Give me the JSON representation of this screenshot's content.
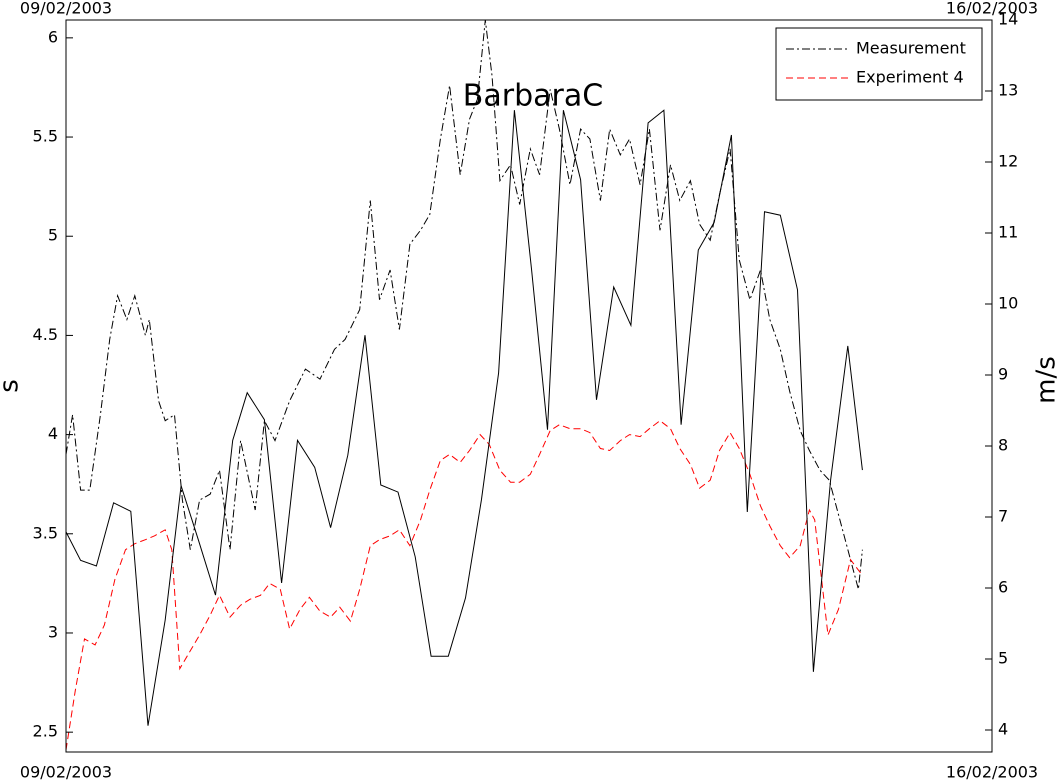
{
  "chart_data": {
    "type": "line",
    "title": "BarbaraC",
    "ylabel": "s",
    "y2label": "m/s",
    "xlim": [
      0,
      7
    ],
    "xticks": [
      {
        "value": 0,
        "label": "09/02/2003"
      },
      {
        "value": 7,
        "label": "16/02/2003"
      }
    ],
    "ylim": [
      2.4,
      6.09
    ],
    "yticks": [
      2.5,
      3,
      3.5,
      4,
      4.5,
      5,
      5.5,
      6
    ],
    "y2lim": [
      3.69,
      14
    ],
    "y2ticks": [
      4,
      5,
      6,
      7,
      8,
      9,
      10,
      11,
      12,
      13,
      14
    ],
    "legend": "upper right",
    "grid": false,
    "series": [
      {
        "name": "Measurement",
        "color": "#000000",
        "dash": "dashdot",
        "x": [
          0,
          0.05,
          0.11,
          0.18,
          0.26,
          0.33,
          0.39,
          0.46,
          0.52,
          0.6,
          0.63,
          0.7,
          0.75,
          0.82,
          0.88,
          0.94,
          1.01,
          1.09,
          1.16,
          1.24,
          1.32,
          1.43,
          1.5,
          1.58,
          1.69,
          1.81,
          1.92,
          2.03,
          2.11,
          2.22,
          2.3,
          2.37,
          2.45,
          2.52,
          2.6,
          2.68,
          2.75,
          2.83,
          2.9,
          2.98,
          3.05,
          3.11,
          3.17,
          3.22,
          3.28,
          3.36,
          3.43,
          3.51,
          3.58,
          3.66,
          3.73,
          3.81,
          3.89,
          3.96,
          4.04,
          4.11,
          4.19,
          4.26,
          4.34,
          4.41,
          4.49,
          4.57,
          4.64,
          4.72,
          4.79,
          4.87,
          4.94,
          5.02,
          5.09,
          5.17,
          5.25,
          5.32,
          5.4,
          5.47,
          5.55,
          5.62,
          5.7,
          5.77,
          5.85,
          5.93,
          5.99,
          6.02
        ],
        "values": [
          3.9,
          4.1,
          3.72,
          3.72,
          4.1,
          4.48,
          4.7,
          4.58,
          4.7,
          4.5,
          4.58,
          4.17,
          4.07,
          4.1,
          3.67,
          3.42,
          3.67,
          3.7,
          3.82,
          3.42,
          3.97,
          3.62,
          4.07,
          3.97,
          4.17,
          4.33,
          4.28,
          4.43,
          4.48,
          4.63,
          5.18,
          4.68,
          4.83,
          4.53,
          4.96,
          5.03,
          5.11,
          5.49,
          5.76,
          5.31,
          5.59,
          5.69,
          6.09,
          5.81,
          5.28,
          5.36,
          5.16,
          5.44,
          5.31,
          5.74,
          5.54,
          5.26,
          5.54,
          5.49,
          5.18,
          5.54,
          5.41,
          5.49,
          5.26,
          5.54,
          5.03,
          5.36,
          5.18,
          5.28,
          5.06,
          4.98,
          5.21,
          5.44,
          4.88,
          4.68,
          4.83,
          4.58,
          4.43,
          4.22,
          4.02,
          3.92,
          3.82,
          3.77,
          3.57,
          3.37,
          3.22,
          3.42
        ]
      },
      {
        "name": "Experiment 4",
        "color": "#ff0000",
        "dash": "dashed",
        "x": [
          0,
          0.07,
          0.14,
          0.22,
          0.29,
          0.37,
          0.45,
          0.52,
          0.6,
          0.67,
          0.75,
          0.8,
          0.86,
          0.94,
          1.01,
          1.09,
          1.16,
          1.24,
          1.32,
          1.39,
          1.47,
          1.54,
          1.62,
          1.69,
          1.77,
          1.84,
          1.92,
          2.0,
          2.07,
          2.15,
          2.22,
          2.3,
          2.37,
          2.45,
          2.52,
          2.6,
          2.68,
          2.75,
          2.83,
          2.9,
          2.98,
          3.05,
          3.13,
          3.2,
          3.28,
          3.36,
          3.43,
          3.51,
          3.58,
          3.66,
          3.73,
          3.81,
          3.89,
          3.96,
          4.04,
          4.11,
          4.19,
          4.26,
          4.34,
          4.41,
          4.49,
          4.57,
          4.64,
          4.72,
          4.79,
          4.87,
          4.94,
          5.02,
          5.09,
          5.17,
          5.25,
          5.32,
          5.4,
          5.47,
          5.55,
          5.62,
          5.66,
          5.76,
          5.84,
          5.93,
          6.02
        ],
        "values": [
          2.41,
          2.71,
          2.97,
          2.94,
          3.04,
          3.27,
          3.42,
          3.45,
          3.47,
          3.49,
          3.52,
          3.42,
          2.82,
          2.91,
          2.99,
          3.09,
          3.19,
          3.08,
          3.14,
          3.17,
          3.19,
          3.25,
          3.22,
          3.02,
          3.12,
          3.18,
          3.11,
          3.08,
          3.13,
          3.06,
          3.22,
          3.44,
          3.47,
          3.49,
          3.52,
          3.44,
          3.57,
          3.72,
          3.87,
          3.9,
          3.86,
          3.92,
          4.0,
          3.95,
          3.82,
          3.76,
          3.76,
          3.8,
          3.9,
          4.02,
          4.05,
          4.03,
          4.03,
          4.01,
          3.93,
          3.92,
          3.97,
          4.0,
          3.99,
          4.03,
          4.07,
          4.03,
          3.93,
          3.85,
          3.73,
          3.77,
          3.92,
          4.01,
          3.93,
          3.8,
          3.64,
          3.54,
          3.44,
          3.38,
          3.44,
          3.62,
          3.57,
          2.99,
          3.12,
          3.37,
          3.29
        ]
      },
      {
        "color": "#000000",
        "dash": "solid",
        "axis": "y2",
        "x": [
          0,
          0.11,
          0.23,
          0.36,
          0.49,
          0.62,
          0.75,
          0.87,
          1.0,
          1.13,
          1.26,
          1.37,
          1.5,
          1.63,
          1.75,
          1.88,
          2.0,
          2.13,
          2.26,
          2.38,
          2.51,
          2.64,
          2.76,
          2.89,
          3.02,
          3.14,
          3.27,
          3.39,
          3.52,
          3.64,
          3.76,
          3.89,
          4.01,
          4.14,
          4.27,
          4.4,
          4.52,
          4.65,
          4.78,
          4.9,
          5.03,
          5.15,
          5.28,
          5.4,
          5.53,
          5.65,
          5.78,
          5.91,
          6.02
        ],
        "values": [
          6.79,
          6.39,
          6.31,
          7.2,
          7.08,
          4.06,
          5.55,
          7.44,
          6.68,
          5.9,
          8.08,
          8.75,
          8.37,
          6.07,
          8.08,
          7.7,
          6.85,
          7.87,
          9.56,
          7.45,
          7.35,
          6.44,
          5.04,
          5.04,
          5.86,
          7.24,
          9.03,
          12.73,
          10.48,
          8.23,
          12.73,
          11.75,
          8.65,
          10.24,
          9.7,
          12.55,
          12.73,
          8.3,
          10.76,
          11.15,
          12.38,
          7.07,
          11.3,
          11.25,
          10.2,
          4.82,
          7.52,
          9.41,
          7.66
        ]
      }
    ]
  }
}
